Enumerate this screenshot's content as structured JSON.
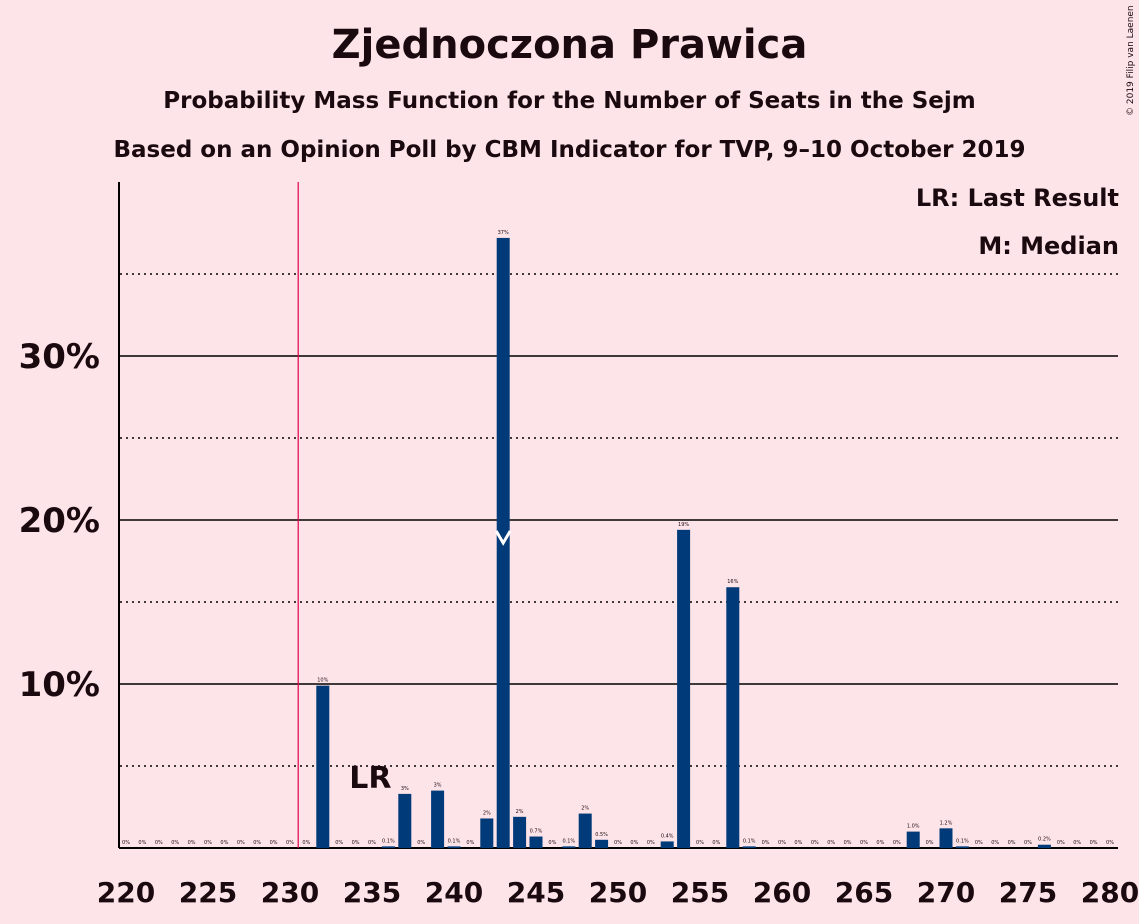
{
  "title": "Zjednoczona Prawica",
  "subtitle": "Probability Mass Function for the Number of Seats in the Sejm",
  "subtitle2": "Based on an Opinion Poll by CBM Indicator for TVP, 9–10 October 2019",
  "copyright": "© 2019 Filip van Laenen",
  "legend": {
    "lr": "LR: Last Result",
    "m": "M: Median"
  },
  "colors": {
    "bar": "#003a78",
    "majority_line": "#e0004d",
    "background": "#fde4e8"
  },
  "chart_data": {
    "type": "bar",
    "x": [
      220,
      221,
      222,
      223,
      224,
      225,
      226,
      227,
      228,
      229,
      230,
      231,
      232,
      233,
      234,
      235,
      236,
      237,
      238,
      239,
      240,
      241,
      242,
      243,
      244,
      245,
      246,
      247,
      248,
      249,
      250,
      251,
      252,
      253,
      254,
      255,
      256,
      257,
      258,
      259,
      260,
      261,
      262,
      263,
      264,
      265,
      266,
      267,
      268,
      269,
      270,
      271,
      272,
      273,
      274,
      275,
      276,
      277,
      278,
      279,
      280
    ],
    "values": [
      0,
      0,
      0,
      0,
      0,
      0,
      0,
      0,
      0,
      0,
      0,
      0,
      9.9,
      0,
      0,
      0,
      0.1,
      3.3,
      0,
      3.5,
      0.1,
      0,
      1.8,
      37.2,
      1.9,
      0.7,
      0,
      0.1,
      2.1,
      0.5,
      0,
      0,
      0,
      0.4,
      19.4,
      0,
      0,
      15.9,
      0.1,
      0,
      0,
      0,
      0,
      0,
      0,
      0,
      0,
      0,
      1.0,
      0,
      1.2,
      0.1,
      0,
      0,
      0,
      0,
      0.2,
      0,
      0,
      0,
      0
    ],
    "data_labels": [
      "0%",
      "0%",
      "0%",
      "0%",
      "0%",
      "0%",
      "0%",
      "0%",
      "0%",
      "0%",
      "0%",
      "0%",
      "10%",
      "0%",
      "0%",
      "0%",
      "0.1%",
      "3%",
      "0%",
      "3%",
      "0.1%",
      "0%",
      "2%",
      "37%",
      "2%",
      "0.7%",
      "0%",
      "0.1%",
      "2%",
      "0.5%",
      "0%",
      "0%",
      "0%",
      "0.4%",
      "19%",
      "0%",
      "0%",
      "16%",
      "0.1%",
      "0%",
      "0%",
      "0%",
      "0%",
      "0%",
      "0%",
      "0%",
      "0%",
      "0%",
      "1.0%",
      "0%",
      "1.2%",
      "0.1%",
      "0%",
      "0%",
      "0%",
      "0%",
      "0.2%",
      "0%",
      "0%",
      "0%",
      "0%"
    ],
    "x_ticks": [
      220,
      225,
      230,
      235,
      240,
      245,
      250,
      255,
      260,
      265,
      270,
      275,
      280
    ],
    "y_ticks": [
      10,
      20,
      30
    ],
    "y_tick_labels": [
      "10%",
      "20%",
      "30%"
    ],
    "ylim": [
      0,
      40
    ],
    "xlim": [
      220,
      280
    ],
    "majority_line": 230.5,
    "last_result": 236,
    "last_result_label": "LR",
    "median": 243,
    "grid": true
  }
}
